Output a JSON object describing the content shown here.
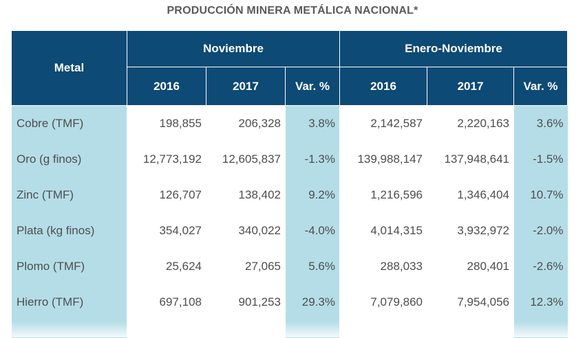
{
  "title": "PRODUCCIÓN MINERA METÁLICA NACIONAL*",
  "headers": {
    "metal": "Metal",
    "group1": "Noviembre",
    "group2": "Enero-Noviembre",
    "cols": [
      "2016",
      "2017",
      "Var. %",
      "2016",
      "2017",
      "Var. %"
    ]
  },
  "rows": [
    {
      "metal": "Cobre (TMF)",
      "values": [
        "198,855",
        "206,328",
        "3.8%",
        "2,142,587",
        "2,220,163",
        "3.6%"
      ]
    },
    {
      "metal": "Oro (g finos)",
      "values": [
        "12,773,192",
        "12,605,837",
        "-1.3%",
        "139,988,147",
        "137,948,641",
        "-1.5%"
      ]
    },
    {
      "metal": "Zinc (TMF)",
      "values": [
        "126,707",
        "138,402",
        "9.2%",
        "1,216,596",
        "1,346,404",
        "10.7%"
      ]
    },
    {
      "metal": "Plata (kg finos)",
      "values": [
        "354,027",
        "340,022",
        "-4.0%",
        "4,014,315",
        "3,932,972",
        "-2.0%"
      ]
    },
    {
      "metal": "Plomo (TMF)",
      "values": [
        "25,624",
        "27,065",
        "5.6%",
        "288,033",
        "280,401",
        "-2.6%"
      ]
    },
    {
      "metal": "Hierro (TMF)",
      "values": [
        "697,108",
        "901,253",
        "29.3%",
        "7,079,860",
        "7,954,056",
        "12.3%"
      ]
    }
  ],
  "colors": {
    "header_bg": "#0d4a75",
    "accent_col": "#b5dde7",
    "text": "#4d4d4d"
  },
  "chart_data": {
    "type": "table",
    "title": "PRODUCCIÓN MINERA METÁLICA NACIONAL*",
    "columns": [
      "Metal",
      "Noviembre 2016",
      "Noviembre 2017",
      "Noviembre Var. %",
      "Enero-Noviembre 2016",
      "Enero-Noviembre 2017",
      "Enero-Noviembre Var. %"
    ],
    "data": [
      [
        "Cobre (TMF)",
        198855,
        206328,
        3.8,
        2142587,
        2220163,
        3.6
      ],
      [
        "Oro (g finos)",
        12773192,
        12605837,
        -1.3,
        139988147,
        137948641,
        -1.5
      ],
      [
        "Zinc (TMF)",
        126707,
        138402,
        9.2,
        1216596,
        1346404,
        10.7
      ],
      [
        "Plata (kg finos)",
        354027,
        340022,
        -4.0,
        4014315,
        3932972,
        -2.0
      ],
      [
        "Plomo (TMF)",
        25624,
        27065,
        5.6,
        288033,
        280401,
        -2.6
      ],
      [
        "Hierro (TMF)",
        697108,
        901253,
        29.3,
        7079860,
        7954056,
        12.3
      ]
    ]
  }
}
